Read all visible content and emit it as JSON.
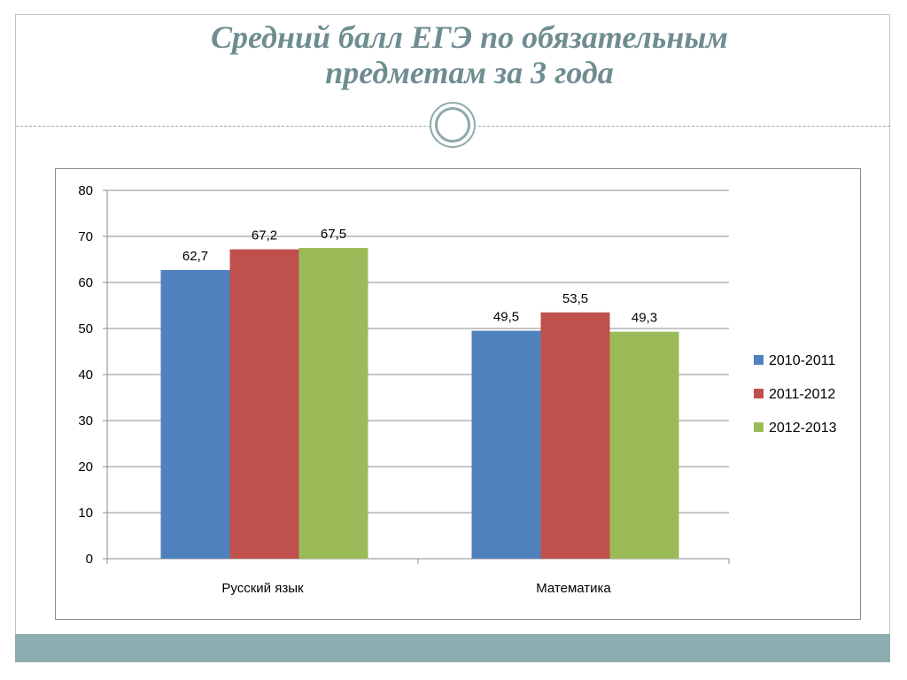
{
  "slide": {
    "title_line1": "Средний балл ЕГЭ по обязательным",
    "title_line2": "предметам за 3 года"
  },
  "colors": {
    "title": "#6f8d91",
    "accent_bar": "#8daeb0",
    "series": [
      "#4f81bd",
      "#c0504d",
      "#9bbb59"
    ]
  },
  "chart_data": {
    "type": "bar",
    "title": "",
    "xlabel": "",
    "ylabel": "",
    "categories": [
      "Русский язык",
      "Математика"
    ],
    "series": [
      {
        "name": "2010-2011",
        "values": [
          62.7,
          49.5
        ],
        "labels": [
          "62,7",
          "49,5"
        ]
      },
      {
        "name": "2011-2012",
        "values": [
          67.2,
          53.5
        ],
        "labels": [
          "67,2",
          "53,5"
        ]
      },
      {
        "name": "2012-2013",
        "values": [
          67.5,
          49.3
        ],
        "labels": [
          "67,5",
          "49,3"
        ]
      }
    ],
    "ylim": [
      0,
      80
    ],
    "yticks": [
      0,
      10,
      20,
      30,
      40,
      50,
      60,
      70,
      80
    ],
    "grid": true,
    "legend": "right"
  }
}
